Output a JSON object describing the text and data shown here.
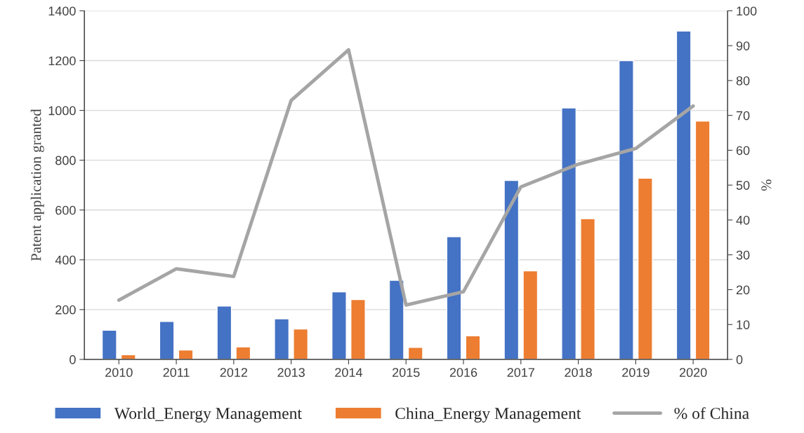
{
  "chart_data": {
    "type": "bar",
    "categories": [
      "2010",
      "2011",
      "2012",
      "2013",
      "2014",
      "2015",
      "2016",
      "2017",
      "2018",
      "2019",
      "2020"
    ],
    "series": [
      {
        "name": "World_Energy Management",
        "color": "#4472c4",
        "values": [
          117,
          152,
          214,
          163,
          271,
          318,
          493,
          719,
          1010,
          1200,
          1319
        ]
      },
      {
        "name": "China_Energy Management",
        "color": "#ed7d31",
        "values": [
          19,
          38,
          50,
          122,
          240,
          48,
          95,
          356,
          565,
          728,
          957
        ]
      },
      {
        "name": "% of China",
        "type": "line",
        "axis": "y2",
        "color": "#a5a5a5",
        "values": [
          17,
          26,
          23.8,
          74.3,
          88.8,
          15.6,
          19.4,
          49.5,
          56,
          60.5,
          72.7
        ]
      }
    ],
    "ylabel": "Patent application granted",
    "y2label": "%",
    "ylim": [
      0,
      1400
    ],
    "yticks": [
      0,
      200,
      400,
      600,
      800,
      1000,
      1200,
      1400
    ],
    "y2lim": [
      0,
      100
    ],
    "y2ticks": [
      0,
      10,
      20,
      30,
      40,
      50,
      60,
      70,
      80,
      90,
      100
    ],
    "grid": "y",
    "legend": "bottom",
    "marker": "none",
    "line_style": "solid"
  }
}
